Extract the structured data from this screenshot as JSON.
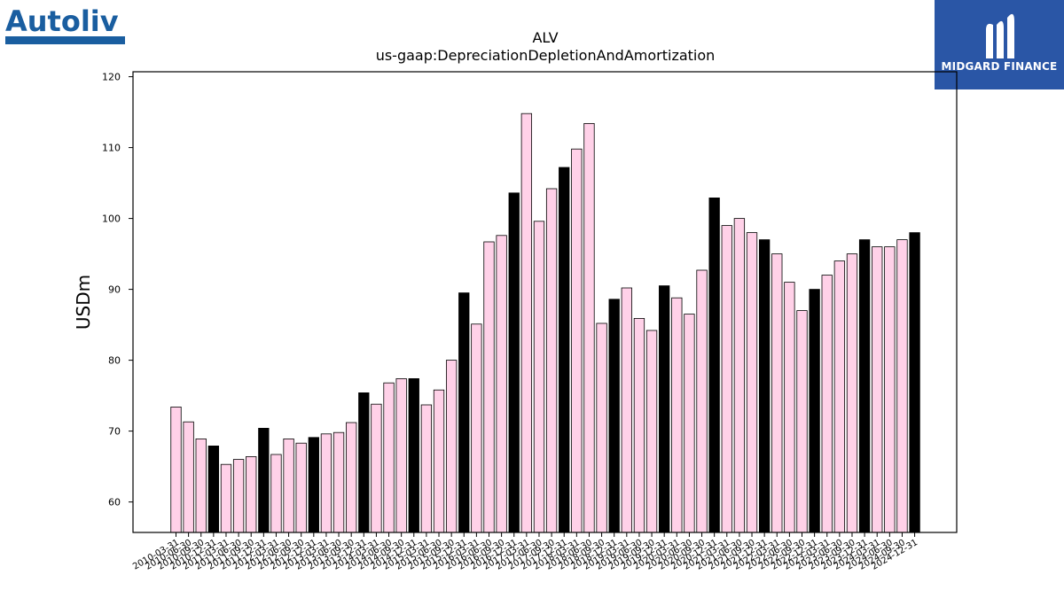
{
  "branding": {
    "company_logo_text": "Autoliv",
    "company_logo_color": "#1a5ea0",
    "partner_logo_text": "MIDGARD FINANCE",
    "partner_logo_bg": "#2a56a6"
  },
  "colors": {
    "bar_default": "#ffd1e8",
    "bar_highlight": "#000000",
    "bar_edge": "#000000"
  },
  "chart_data": {
    "type": "bar",
    "title": "ALV",
    "subtitle": "us-gaap:DepreciationDepletionAndAmortization",
    "xlabel": "",
    "ylabel": "USDm",
    "ylim": [
      55.7,
      120.7
    ],
    "yticks": [
      60,
      70,
      80,
      90,
      100,
      110,
      120
    ],
    "grid": false,
    "categories": [
      "2010-03-31",
      "2010-06-30",
      "2010-09-30",
      "2010-12-31",
      "2011-03-31",
      "2011-06-30",
      "2011-09-30",
      "2011-12-31",
      "2012-03-31",
      "2012-06-30",
      "2012-09-30",
      "2012-12-31",
      "2013-03-31",
      "2013-06-30",
      "2013-09-30",
      "2013-12-31",
      "2014-03-31",
      "2014-06-30",
      "2014-09-30",
      "2014-12-31",
      "2015-03-31",
      "2015-06-30",
      "2015-09-30",
      "2015-12-31",
      "2016-03-31",
      "2016-06-30",
      "2016-09-30",
      "2016-12-31",
      "2017-03-31",
      "2017-06-30",
      "2017-09-30",
      "2017-12-31",
      "2018-03-31",
      "2018-06-30",
      "2018-09-30",
      "2018-12-31",
      "2019-03-31",
      "2019-06-30",
      "2019-09-30",
      "2019-12-31",
      "2020-03-31",
      "2020-06-30",
      "2020-09-30",
      "2020-12-31",
      "2021-03-31",
      "2021-06-30",
      "2021-09-30",
      "2021-12-31",
      "2022-03-31",
      "2022-06-30",
      "2022-09-30",
      "2022-12-31",
      "2023-03-31",
      "2023-06-30",
      "2023-09-30",
      "2023-12-31",
      "2024-03-31",
      "2024-06-30",
      "2024-09-30",
      "2024-12-31"
    ],
    "values": [
      73.4,
      71.3,
      68.9,
      67.9,
      65.3,
      66.0,
      66.4,
      70.4,
      66.7,
      68.9,
      68.3,
      69.1,
      69.6,
      69.8,
      71.2,
      75.4,
      73.8,
      76.8,
      77.4,
      77.4,
      73.7,
      75.8,
      80.0,
      89.5,
      85.1,
      96.7,
      97.6,
      103.6,
      114.8,
      99.6,
      104.2,
      107.2,
      109.8,
      113.4,
      85.2,
      88.6,
      90.2,
      85.9,
      84.2,
      90.5,
      88.8,
      86.5,
      92.7,
      102.9,
      99.0,
      100.0,
      98.0,
      97.0,
      95.0,
      91.0,
      87.0,
      90.0,
      92.0,
      94.0,
      95.0,
      97.0,
      96.0,
      96.0,
      97.0,
      98.0
    ],
    "highlight_rule": "Q4 (December) bars drawn in black"
  }
}
